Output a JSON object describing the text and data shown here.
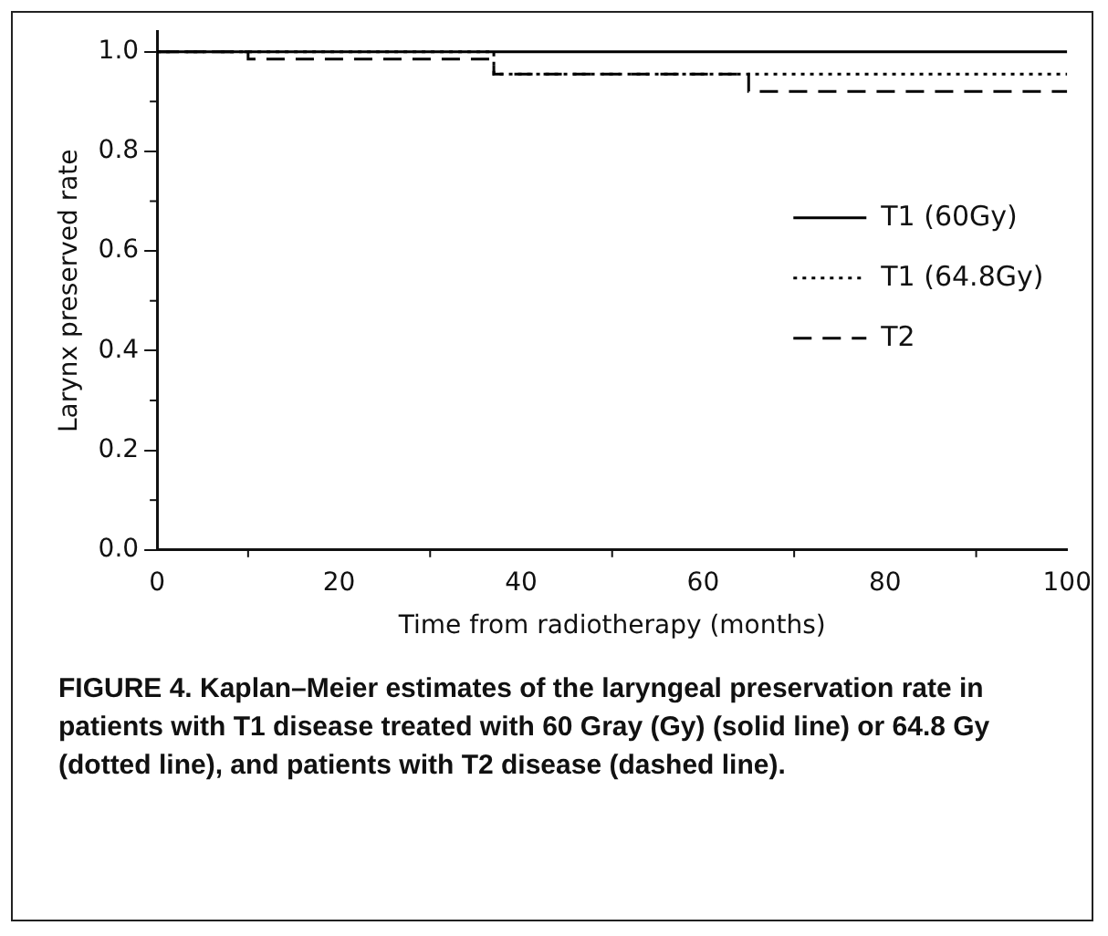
{
  "chart_data": {
    "type": "step",
    "xlabel": "Time from radiotherapy (months)",
    "ylabel": "Larynx preserved rate",
    "x": [
      0,
      10,
      37,
      65,
      100
    ],
    "series": [
      {
        "name": "T1 (60Gy)",
        "color": "#000000",
        "line_style": "solid",
        "values": [
          1.0,
          1.0,
          1.0,
          1.0,
          1.0
        ]
      },
      {
        "name": "T1 (64.8Gy)",
        "color": "#000000",
        "line_style": "dotted",
        "values": [
          1.0,
          1.0,
          0.955,
          0.955,
          0.955
        ]
      },
      {
        "name": "T2",
        "color": "#000000",
        "line_style": "dashed",
        "values": [
          1.0,
          0.985,
          0.955,
          0.92,
          0.92
        ]
      }
    ],
    "xlim": [
      0,
      100
    ],
    "xticks": [
      0,
      20,
      40,
      60,
      80,
      100
    ],
    "ylim": [
      0,
      1.04
    ],
    "yticks": [
      {
        "value": 0,
        "label": "0.0"
      },
      {
        "value": 0.2,
        "label": "0.2"
      },
      {
        "value": 0.4,
        "label": "0.4"
      },
      {
        "value": 0.6,
        "label": "0.6"
      },
      {
        "value": 0.8,
        "label": "0.8"
      },
      {
        "value": 1,
        "label": "1.0"
      }
    ],
    "grid": false,
    "legend": "right",
    "marker": "none",
    "annotations": [
      "FIGURE 4. Kaplan–Meier estimates of the laryngeal preservation rate in patients with T1 disease treated with 60 Gray (Gy) (solid line) or 64.8 Gy (dotted line), and patients with T2 disease (dashed line)."
    ]
  }
}
